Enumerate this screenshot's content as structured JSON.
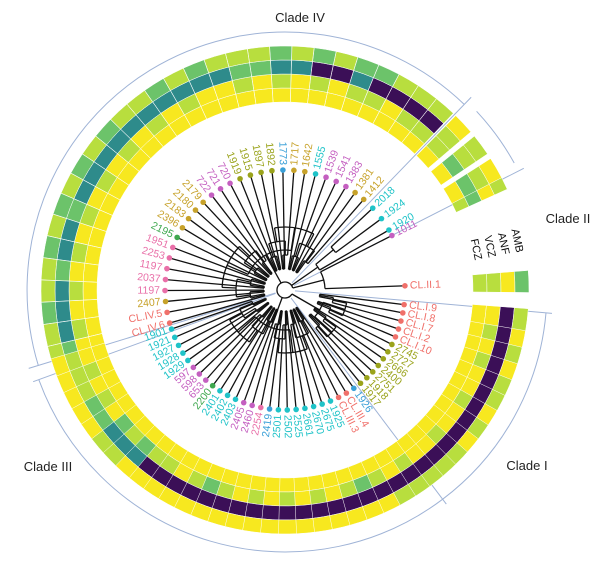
{
  "figure": {
    "clades": [
      {
        "label": "Clade IV",
        "id": "clade-iv"
      },
      {
        "label": "Clade II",
        "id": "clade-ii"
      },
      {
        "label": "Clade I",
        "id": "clade-i"
      },
      {
        "label": "Clade III",
        "id": "clade-iii"
      }
    ],
    "drugs": [
      "AMB",
      "ANF",
      "VCZ",
      "FCZ"
    ],
    "colors": {
      "background": "#ffffff",
      "branch": "#111111",
      "boundary": "#9fb3d6",
      "salmon": "#f0706a",
      "cyan": "#1fc3c8",
      "magenta": "#c45fc0",
      "olive": "#9aa31b",
      "gold": "#c7a22a",
      "green": "#3fa84f",
      "blue": "#3aa0d8",
      "pink": "#e96fa8",
      "heat_purple": "#3b0f57",
      "heat_teal": "#2e8b8b",
      "heat_green": "#6cc36a",
      "heat_lime": "#b8de3e",
      "heat_yellow": "#f7e81f"
    },
    "tips": [
      {
        "label": "CL.II.1",
        "color": "salmon",
        "heat": [
          3,
          3,
          4,
          2
        ]
      },
      {
        "label": "1011",
        "color": "magenta",
        "heat": [
          3,
          2,
          4,
          3
        ]
      },
      {
        "label": "1920",
        "color": "cyan",
        "heat": [
          4,
          2,
          3,
          4
        ]
      },
      {
        "label": "1924",
        "color": "cyan",
        "heat": [
          4,
          2,
          3,
          3
        ]
      },
      {
        "label": "2018",
        "color": "cyan",
        "heat": [
          4,
          3,
          3,
          4
        ]
      },
      {
        "label": "1412",
        "color": "gold",
        "heat": [
          4,
          3,
          0,
          3
        ]
      },
      {
        "label": "1381",
        "color": "gold",
        "heat": [
          4,
          3,
          0,
          3
        ]
      },
      {
        "label": "1383",
        "color": "magenta",
        "heat": [
          4,
          4,
          0,
          3
        ]
      },
      {
        "label": "1541",
        "color": "magenta",
        "heat": [
          4,
          3,
          0,
          2
        ]
      },
      {
        "label": "1539",
        "color": "magenta",
        "heat": [
          4,
          3,
          1,
          2
        ]
      },
      {
        "label": "1555",
        "color": "cyan",
        "heat": [
          4,
          4,
          0,
          3
        ]
      },
      {
        "label": "1642",
        "color": "gold",
        "heat": [
          4,
          3,
          0,
          2
        ]
      },
      {
        "label": "1717",
        "color": "gold",
        "heat": [
          4,
          4,
          1,
          3
        ]
      },
      {
        "label": "1773",
        "color": "blue",
        "heat": [
          4,
          3,
          1,
          2
        ]
      },
      {
        "label": "1892",
        "color": "olive",
        "heat": [
          4,
          4,
          2,
          3
        ]
      },
      {
        "label": "1897",
        "color": "olive",
        "heat": [
          4,
          3,
          2,
          3
        ]
      },
      {
        "label": "1915",
        "color": "olive",
        "heat": [
          4,
          4,
          1,
          3
        ]
      },
      {
        "label": "1919",
        "color": "olive",
        "heat": [
          4,
          4,
          1,
          2
        ]
      },
      {
        "label": "720",
        "color": "magenta",
        "heat": [
          4,
          3,
          1,
          3
        ]
      },
      {
        "label": "721",
        "color": "magenta",
        "heat": [
          4,
          4,
          1,
          2
        ]
      },
      {
        "label": "722",
        "color": "magenta",
        "heat": [
          4,
          3,
          1,
          3
        ]
      },
      {
        "label": "2179",
        "color": "gold",
        "heat": [
          4,
          4,
          1,
          3
        ]
      },
      {
        "label": "2180",
        "color": "gold",
        "heat": [
          4,
          3,
          1,
          2
        ]
      },
      {
        "label": "2183",
        "color": "gold",
        "heat": [
          4,
          4,
          1,
          3
        ]
      },
      {
        "label": "2396",
        "color": "gold",
        "heat": [
          4,
          3,
          1,
          2
        ]
      },
      {
        "label": "2195",
        "color": "green",
        "heat": [
          4,
          4,
          1,
          3
        ]
      },
      {
        "label": "1951",
        "color": "pink",
        "heat": [
          4,
          3,
          2,
          2
        ]
      },
      {
        "label": "2253",
        "color": "pink",
        "heat": [
          4,
          4,
          1,
          3
        ]
      },
      {
        "label": "1197",
        "color": "pink",
        "heat": [
          4,
          3,
          1,
          2
        ]
      },
      {
        "label": "2037",
        "color": "pink",
        "heat": [
          4,
          4,
          2,
          3
        ]
      },
      {
        "label": "1197",
        "color": "pink",
        "heat": [
          4,
          3,
          1,
          3
        ]
      },
      {
        "label": "2407",
        "color": "gold",
        "heat": [
          4,
          4,
          1,
          2
        ]
      },
      {
        "label": "CL.IV.5",
        "color": "salmon",
        "heat": [
          4,
          3,
          1,
          3
        ]
      },
      {
        "label": "CL.IV.6",
        "color": "salmon",
        "heat": [
          4,
          4,
          2,
          3
        ]
      },
      {
        "label": "1901",
        "color": "cyan",
        "heat": [
          4,
          4,
          3,
          4
        ]
      },
      {
        "label": "1921",
        "color": "cyan",
        "heat": [
          4,
          3,
          3,
          4
        ]
      },
      {
        "label": "1927",
        "color": "cyan",
        "heat": [
          4,
          4,
          3,
          4
        ]
      },
      {
        "label": "1928",
        "color": "cyan",
        "heat": [
          4,
          3,
          2,
          4
        ]
      },
      {
        "label": "1929",
        "color": "cyan",
        "heat": [
          4,
          4,
          2,
          4
        ]
      },
      {
        "label": "597",
        "color": "magenta",
        "heat": [
          4,
          2,
          1,
          3
        ]
      },
      {
        "label": "598",
        "color": "magenta",
        "heat": [
          4,
          3,
          1,
          3
        ]
      },
      {
        "label": "653",
        "color": "magenta",
        "heat": [
          4,
          2,
          1,
          4
        ]
      },
      {
        "label": "2200",
        "color": "green",
        "heat": [
          4,
          3,
          0,
          4
        ]
      },
      {
        "label": "2401",
        "color": "cyan",
        "heat": [
          4,
          3,
          0,
          4
        ]
      },
      {
        "label": "2402",
        "color": "cyan",
        "heat": [
          4,
          4,
          0,
          4
        ]
      },
      {
        "label": "2403",
        "color": "cyan",
        "heat": [
          4,
          3,
          0,
          4
        ]
      },
      {
        "label": "2405",
        "color": "magenta",
        "heat": [
          4,
          2,
          0,
          4
        ]
      },
      {
        "label": "2460",
        "color": "magenta",
        "heat": [
          4,
          3,
          0,
          4
        ]
      },
      {
        "label": "2254",
        "color": "pink",
        "heat": [
          4,
          4,
          0,
          4
        ]
      },
      {
        "label": "2419",
        "color": "blue",
        "heat": [
          4,
          3,
          0,
          4
        ]
      },
      {
        "label": "2501",
        "color": "cyan",
        "heat": [
          4,
          4,
          0,
          4
        ]
      },
      {
        "label": "2502",
        "color": "cyan",
        "heat": [
          4,
          3,
          0,
          4
        ]
      },
      {
        "label": "2525",
        "color": "cyan",
        "heat": [
          4,
          4,
          0,
          4
        ]
      },
      {
        "label": "2661",
        "color": "cyan",
        "heat": [
          4,
          3,
          0,
          4
        ]
      },
      {
        "label": "2670",
        "color": "cyan",
        "heat": [
          4,
          4,
          0,
          4
        ]
      },
      {
        "label": "2675",
        "color": "cyan",
        "heat": [
          4,
          3,
          0,
          4
        ]
      },
      {
        "label": "1925",
        "color": "cyan",
        "heat": [
          4,
          2,
          0,
          4
        ]
      },
      {
        "label": "CL.III.3",
        "color": "salmon",
        "heat": [
          4,
          3,
          0,
          4
        ]
      },
      {
        "label": "CL.III.4",
        "color": "salmon",
        "heat": [
          4,
          4,
          0,
          3
        ]
      },
      {
        "label": "1926",
        "color": "blue",
        "heat": [
          4,
          3,
          0,
          3
        ]
      },
      {
        "label": "1917",
        "color": "olive",
        "heat": [
          4,
          4,
          0,
          3
        ]
      },
      {
        "label": "1918",
        "color": "olive",
        "heat": [
          4,
          4,
          0,
          3
        ]
      },
      {
        "label": "2751",
        "color": "olive",
        "heat": [
          4,
          3,
          0,
          3
        ]
      },
      {
        "label": "2400",
        "color": "olive",
        "heat": [
          4,
          4,
          0,
          4
        ]
      },
      {
        "label": "2666",
        "color": "olive",
        "heat": [
          4,
          4,
          0,
          3
        ]
      },
      {
        "label": "2727",
        "color": "olive",
        "heat": [
          4,
          3,
          0,
          4
        ]
      },
      {
        "label": "2745",
        "color": "olive",
        "heat": [
          4,
          4,
          0,
          3
        ]
      },
      {
        "label": "CL.I.10",
        "color": "salmon",
        "heat": [
          4,
          4,
          0,
          3
        ]
      },
      {
        "label": "CL.I.2",
        "color": "salmon",
        "heat": [
          4,
          3,
          0,
          4
        ]
      },
      {
        "label": "CL.I.7",
        "color": "salmon",
        "heat": [
          4,
          4,
          0,
          3
        ]
      },
      {
        "label": "CL.I.8",
        "color": "salmon",
        "heat": [
          4,
          3,
          0,
          4
        ]
      },
      {
        "label": "CL.I.9",
        "color": "salmon",
        "heat": [
          4,
          4,
          0,
          3
        ]
      }
    ]
  }
}
